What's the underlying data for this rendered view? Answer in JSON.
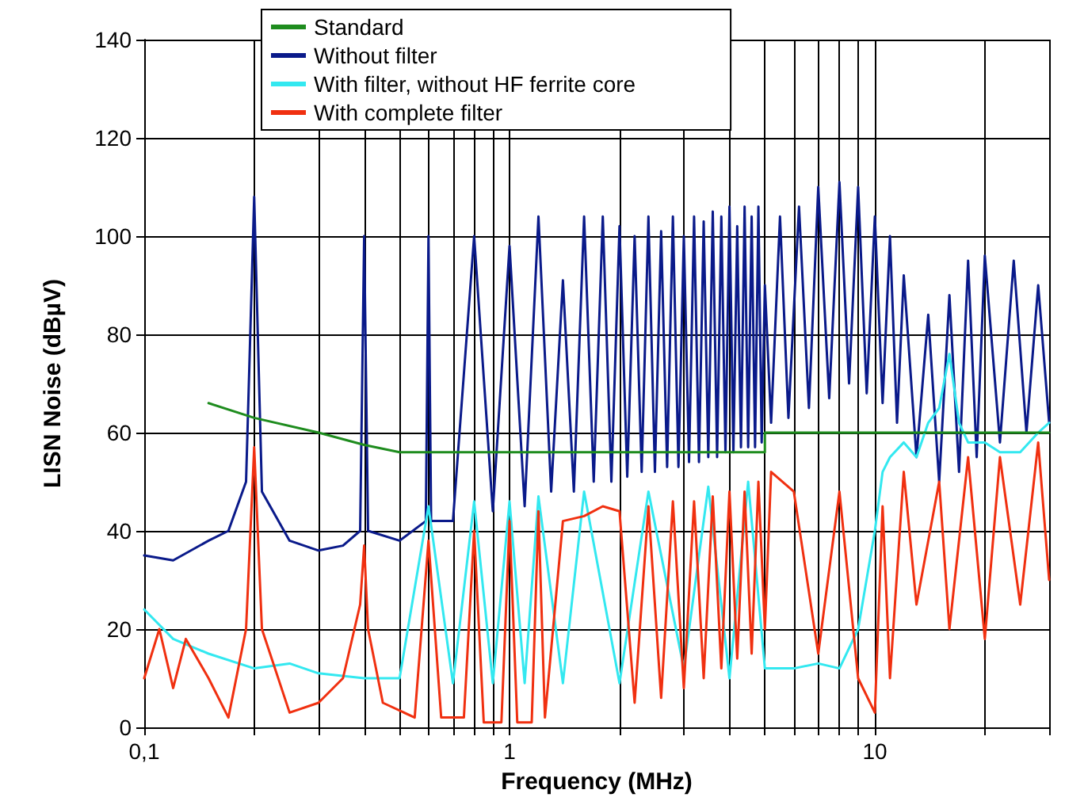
{
  "chart_data": {
    "type": "line",
    "xlabel": "Frequency (MHz)",
    "ylabel": "LISN Noise (dBµV)",
    "log": "x",
    "grid": true,
    "legend": "top",
    "marker": "none",
    "line_style": "solid",
    "xlim": [
      0.1,
      30
    ],
    "ylim": [
      0,
      140
    ],
    "xticks": [
      {
        "value": 0.1,
        "label": "0,1"
      },
      {
        "value": 0.2,
        "label": null
      },
      {
        "value": 0.3,
        "label": null
      },
      {
        "value": 0.4,
        "label": null
      },
      {
        "value": 0.5,
        "label": null
      },
      {
        "value": 0.6,
        "label": null
      },
      {
        "value": 0.7,
        "label": null
      },
      {
        "value": 0.8,
        "label": null
      },
      {
        "value": 0.9,
        "label": null
      },
      {
        "value": 1,
        "label": "1"
      },
      {
        "value": 2,
        "label": null
      },
      {
        "value": 3,
        "label": null
      },
      {
        "value": 4,
        "label": null
      },
      {
        "value": 5,
        "label": null
      },
      {
        "value": 6,
        "label": null
      },
      {
        "value": 7,
        "label": null
      },
      {
        "value": 8,
        "label": null
      },
      {
        "value": 9,
        "label": null
      },
      {
        "value": 10,
        "label": "10"
      },
      {
        "value": 20,
        "label": null
      },
      {
        "value": 30,
        "label": null
      }
    ],
    "yticks": [
      0,
      20,
      40,
      60,
      80,
      100,
      120,
      140
    ],
    "series": [
      {
        "name": "Standard",
        "color": "#1e8c1e",
        "x": [
          0.15,
          0.2,
          0.3,
          0.4,
          0.5,
          1,
          2,
          5,
          5,
          10,
          20,
          30
        ],
        "values": [
          66,
          63,
          60,
          57.5,
          56,
          56,
          56,
          56,
          60,
          60,
          60,
          60
        ]
      },
      {
        "name": "Without filter",
        "color": "#0a1a8a",
        "x": [
          0.1,
          0.12,
          0.15,
          0.17,
          0.19,
          0.2,
          0.21,
          0.25,
          0.3,
          0.35,
          0.39,
          0.4,
          0.41,
          0.5,
          0.59,
          0.6,
          0.61,
          0.7,
          0.8,
          0.9,
          1.0,
          1.1,
          1.2,
          1.3,
          1.4,
          1.5,
          1.6,
          1.7,
          1.8,
          1.9,
          2.0,
          2.1,
          2.2,
          2.3,
          2.4,
          2.5,
          2.6,
          2.7,
          2.8,
          2.9,
          3.0,
          3.1,
          3.2,
          3.3,
          3.4,
          3.5,
          3.6,
          3.7,
          3.8,
          3.9,
          4.0,
          4.1,
          4.2,
          4.3,
          4.4,
          4.5,
          4.6,
          4.7,
          4.8,
          4.9,
          5.0,
          5.2,
          5.5,
          5.8,
          6.2,
          6.6,
          7,
          7.5,
          8,
          8.5,
          9,
          9.5,
          10,
          10.5,
          11,
          11.5,
          12,
          13,
          14,
          15,
          16,
          17,
          18,
          19,
          20,
          22,
          24,
          26,
          28,
          30
        ],
        "values": [
          35,
          34,
          38,
          40,
          50,
          108,
          48,
          38,
          36,
          37,
          40,
          100,
          40,
          38,
          42,
          100,
          42,
          42,
          100,
          44,
          98,
          45,
          104,
          48,
          91,
          48,
          104,
          50,
          104,
          50,
          102,
          51,
          100,
          52,
          104,
          52,
          101,
          53,
          104,
          53,
          100,
          54,
          104,
          54,
          103,
          55,
          105,
          55,
          104,
          56,
          106,
          56,
          102,
          57,
          106,
          57,
          104,
          57,
          106,
          58,
          90,
          62,
          104,
          63,
          106,
          65,
          110,
          67,
          111,
          70,
          110,
          68,
          104,
          66,
          100,
          62,
          92,
          55,
          84,
          50,
          88,
          52,
          95,
          55,
          96,
          58,
          95,
          60,
          90,
          62
        ]
      },
      {
        "name": "With filter, without HF ferrite core",
        "color": "#33e8f0",
        "x": [
          0.1,
          0.12,
          0.15,
          0.2,
          0.25,
          0.3,
          0.4,
          0.5,
          0.6,
          0.7,
          0.8,
          0.9,
          1.0,
          1.1,
          1.2,
          1.4,
          1.6,
          2.0,
          2.4,
          3.0,
          3.5,
          4.0,
          4.5,
          5.0,
          6,
          7,
          8,
          9,
          10,
          10.5,
          11,
          12,
          13,
          14,
          15,
          16,
          17,
          18,
          20,
          22,
          25,
          28,
          30
        ],
        "values": [
          24,
          18,
          15,
          12,
          13,
          11,
          10,
          10,
          45,
          9,
          46,
          9,
          46,
          9,
          47,
          9,
          48,
          9,
          48,
          12,
          49,
          10,
          50,
          12,
          12,
          13,
          12,
          20,
          40,
          52,
          55,
          58,
          55,
          62,
          65,
          76,
          62,
          58,
          58,
          56,
          56,
          60,
          62
        ]
      },
      {
        "name": "With complete filter",
        "color": "#f03010",
        "x": [
          0.1,
          0.11,
          0.12,
          0.13,
          0.15,
          0.17,
          0.19,
          0.2,
          0.21,
          0.25,
          0.3,
          0.35,
          0.39,
          0.4,
          0.41,
          0.45,
          0.55,
          0.6,
          0.65,
          0.75,
          0.8,
          0.85,
          0.95,
          1.0,
          1.05,
          1.15,
          1.2,
          1.25,
          1.4,
          1.6,
          1.8,
          2.0,
          2.2,
          2.4,
          2.6,
          2.8,
          3.0,
          3.2,
          3.4,
          3.6,
          3.8,
          4.0,
          4.2,
          4.4,
          4.6,
          4.8,
          5.0,
          5.2,
          6,
          7,
          8,
          9,
          10,
          10.5,
          11,
          12,
          13,
          15,
          16,
          18,
          20,
          22,
          25,
          28,
          30
        ],
        "values": [
          10,
          20,
          8,
          18,
          10,
          2,
          20,
          57,
          20,
          3,
          5,
          10,
          25,
          37,
          20,
          5,
          2,
          38,
          2,
          2,
          40,
          1,
          1,
          42,
          1,
          1,
          44,
          2,
          42,
          43,
          45,
          44,
          5,
          45,
          6,
          46,
          8,
          46,
          10,
          47,
          12,
          48,
          14,
          48,
          15,
          50,
          20,
          52,
          48,
          15,
          48,
          10,
          3,
          45,
          10,
          52,
          25,
          50,
          20,
          55,
          18,
          55,
          25,
          58,
          30
        ]
      }
    ]
  }
}
